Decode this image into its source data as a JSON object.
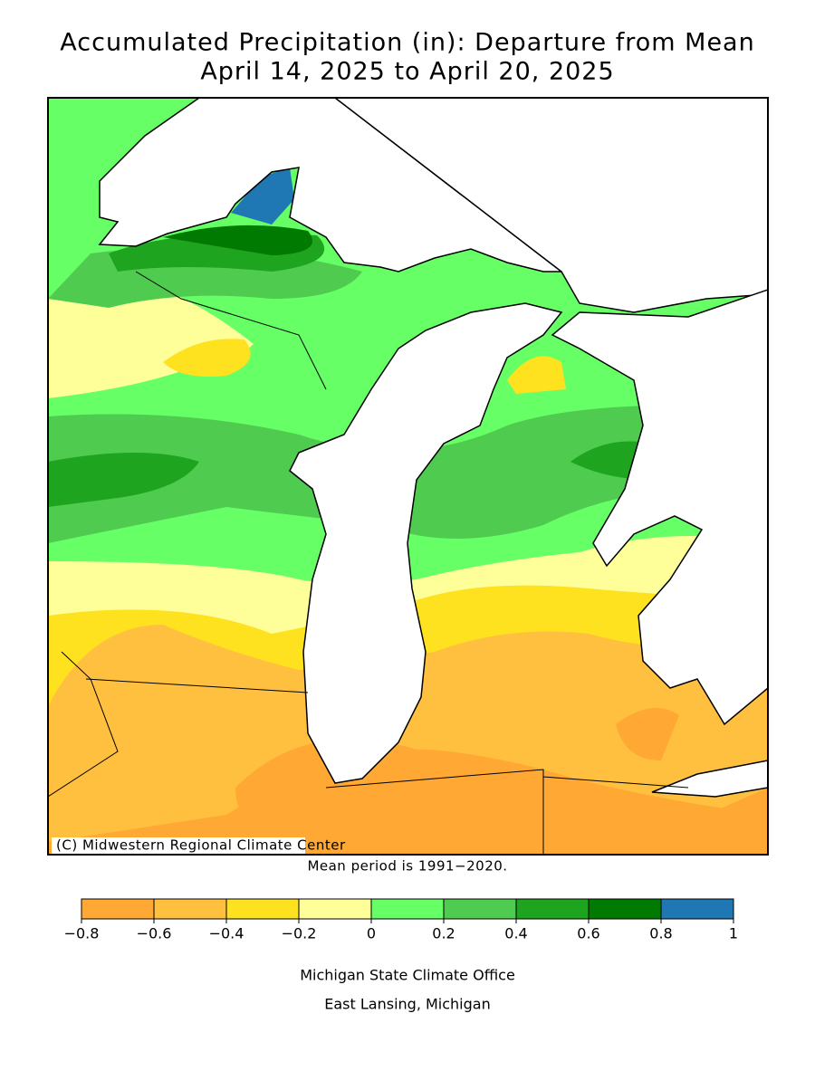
{
  "title": [
    "Accumulated Precipitation (in): Departure from Mean",
    "April 14, 2025 to April 20, 2025"
  ],
  "map": {
    "copyright": "(C) Midwestern Regional Climate Center",
    "note": "Mean period is 1991−2020."
  },
  "legend": {
    "colors": [
      "#ffa833",
      "#ffc040",
      "#ffe21f",
      "#ffff99",
      "#66ff66",
      "#4fcb4f",
      "#1ea41e",
      "#007a00",
      "#1f78b4"
    ],
    "ticks": [
      {
        "value": -0.8,
        "label": "−0.8"
      },
      {
        "value": -0.6,
        "label": "−0.6"
      },
      {
        "value": -0.4,
        "label": "−0.4"
      },
      {
        "value": -0.2,
        "label": "−0.2"
      },
      0,
      0.2,
      0.4,
      0.6,
      0.8,
      1
    ]
  },
  "credits": [
    "Michigan State Climate Office",
    "East Lansing, Michigan"
  ]
}
